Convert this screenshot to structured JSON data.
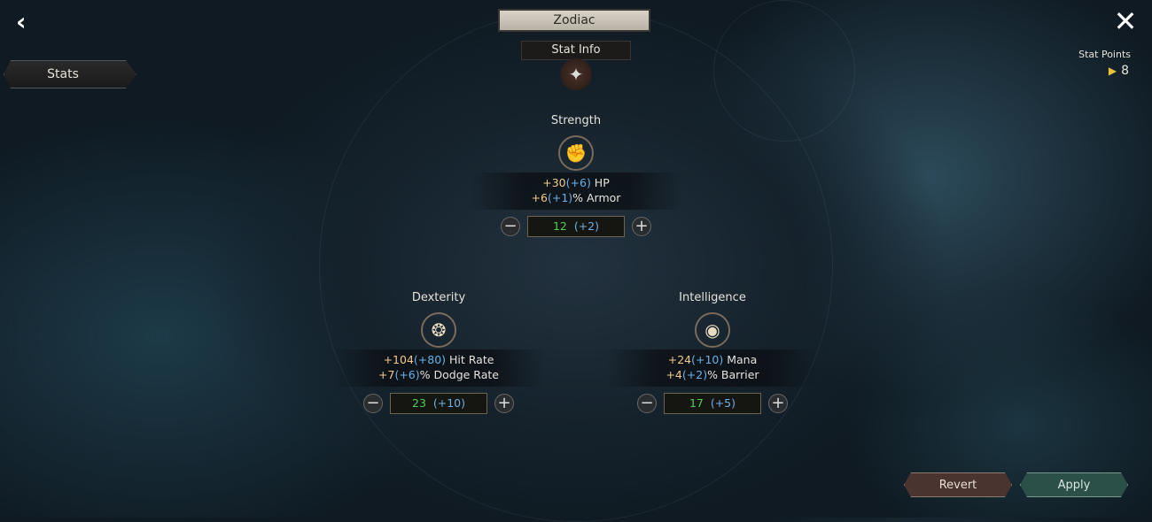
{
  "header": {
    "title": "Zodiac",
    "subtitle": "Stat Info",
    "back_icon": "chevron-left-icon",
    "close_icon": "close-icon",
    "emblem_icon": "zodiac-emblem-icon"
  },
  "sidebar": {
    "tab_label": "Stats"
  },
  "stat_points": {
    "label": "Stat Points",
    "value": "8",
    "icon": "arrow-point-icon",
    "icon_color": "#e8c23a"
  },
  "stats": [
    {
      "name": "Strength",
      "icon": "fist-icon",
      "lines": [
        {
          "base": "+30",
          "bonus": "(+6)",
          "suffix": " HP"
        },
        {
          "base": "+6",
          "bonus": "(+1)",
          "suffix": "% Armor"
        }
      ],
      "value": "12",
      "value_bonus": "(+2)"
    },
    {
      "name": "Dexterity",
      "icon": "triskelion-icon",
      "lines": [
        {
          "base": "+104",
          "bonus": "(+80)",
          "suffix": " Hit Rate"
        },
        {
          "base": "+7",
          "bonus": "(+6)",
          "suffix": "% Dodge Rate"
        }
      ],
      "value": "23",
      "value_bonus": "(+10)"
    },
    {
      "name": "Intelligence",
      "icon": "eye-icon",
      "lines": [
        {
          "base": "+24",
          "bonus": "(+10)",
          "suffix": " Mana"
        },
        {
          "base": "+4",
          "bonus": "(+2)",
          "suffix": "% Barrier"
        }
      ],
      "value": "17",
      "value_bonus": "(+5)"
    }
  ],
  "buttons": {
    "revert": "Revert",
    "apply": "Apply",
    "minus": "−",
    "plus": "+"
  },
  "colors": {
    "base": "#f1c98a",
    "bonus": "#6cb0e6",
    "value": "#4fd04f",
    "apply_bg": "#2b5048",
    "revert_bg": "#4a3430"
  }
}
